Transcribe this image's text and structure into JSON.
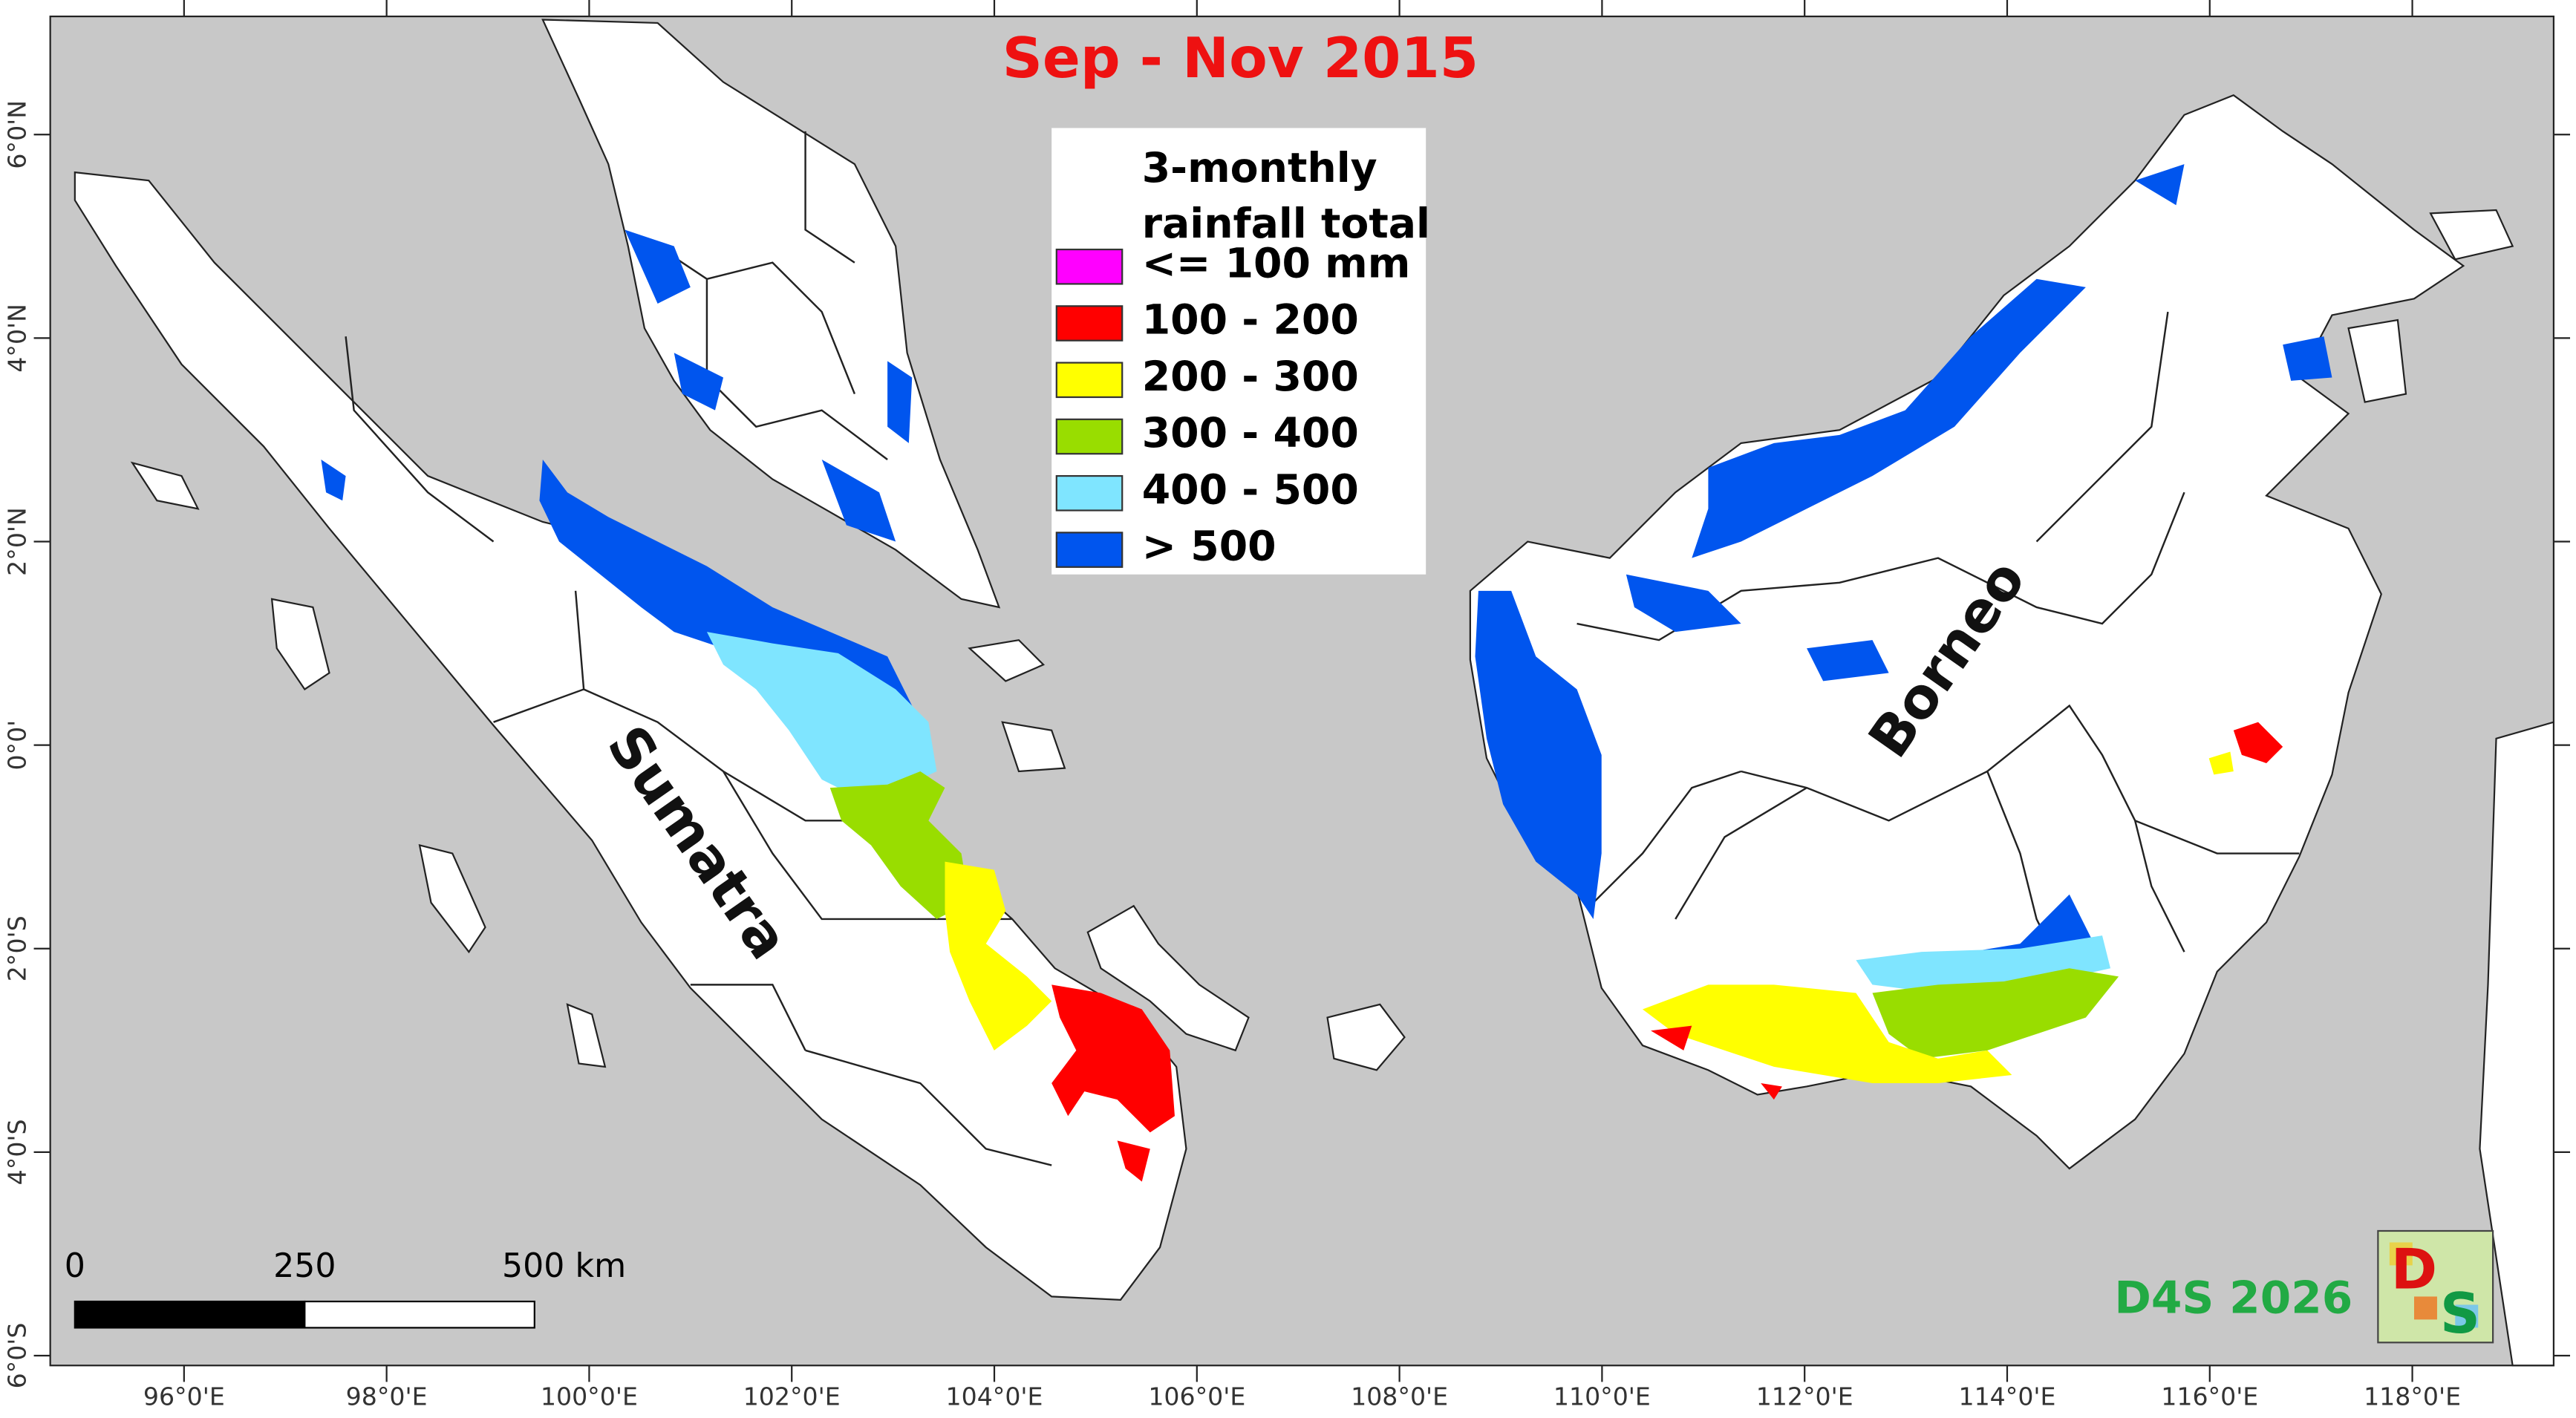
{
  "map": {
    "title": "Sep - Nov 2015",
    "legend": {
      "title_lines": [
        "3-monthly",
        "rainfall total"
      ],
      "items": [
        {
          "label": "<= 100 mm",
          "color": "#ff00ff"
        },
        {
          "label": "100 - 200",
          "color": "#ff0000"
        },
        {
          "label": "200 - 300",
          "color": "#ffff00"
        },
        {
          "label": "300 - 400",
          "color": "#99dd00"
        },
        {
          "label": "400 - 500",
          "color": "#7fe5ff"
        },
        {
          "label": "> 500",
          "color": "#0055ee"
        }
      ]
    },
    "longitude_labels": [
      "96°0'E",
      "98°0'E",
      "100°0'E",
      "102°0'E",
      "104°0'E",
      "106°0'E",
      "108°0'E",
      "110°0'E",
      "112°0'E",
      "114°0'E",
      "116°0'E",
      "118°0'E"
    ],
    "latitude_labels": [
      "6°0'N",
      "4°0'N",
      "2°0'N",
      "0°0'",
      "2°0'S",
      "4°0'S",
      "6°0'S"
    ],
    "scale_bar": {
      "labels": [
        "0",
        "250",
        "500 km"
      ]
    },
    "place_labels": [
      "Sumatra",
      "Borneo"
    ],
    "credit": "D4S 2026",
    "logo_letters": [
      "D",
      "S"
    ]
  }
}
